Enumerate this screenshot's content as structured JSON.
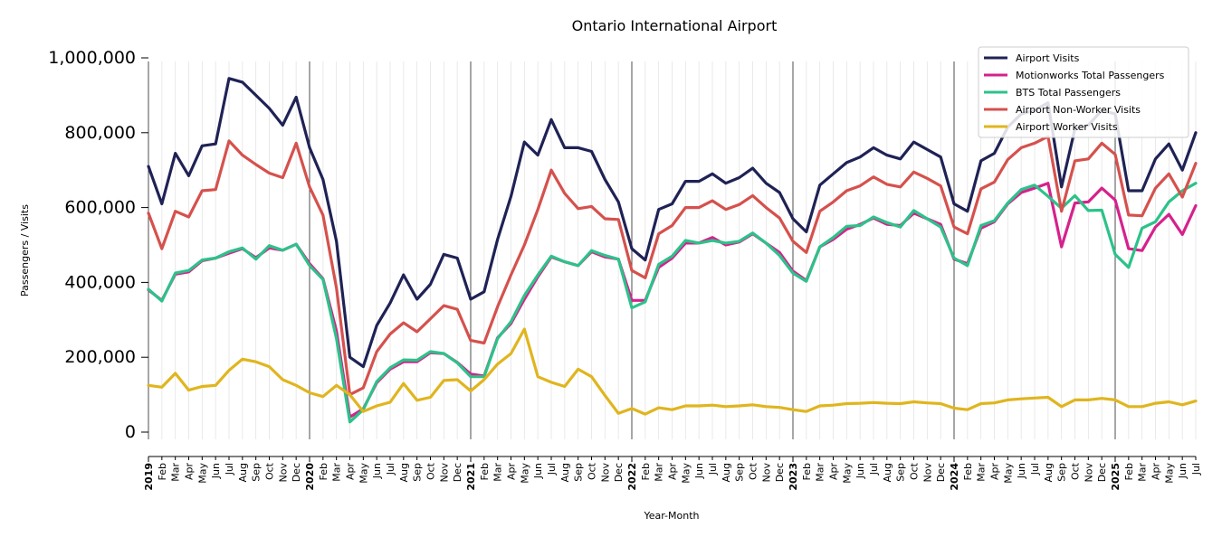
{
  "chart_data": {
    "type": "line",
    "title": "Ontario International Airport",
    "xlabel": "Year-Month",
    "ylabel": "Passengers / Visits",
    "ylim": [
      0,
      1000000
    ],
    "yticks": [
      0,
      200000,
      400000,
      600000,
      800000,
      1000000
    ],
    "ytick_labels": [
      "0",
      "200,000",
      "400,000",
      "600,000",
      "800,000",
      "1,000,000"
    ],
    "grid": "vertical monthly gridlines, dark lines at year boundaries",
    "legend_position": "top-right",
    "x": [
      "2019-01",
      "2019-02",
      "2019-03",
      "2019-04",
      "2019-05",
      "2019-06",
      "2019-07",
      "2019-08",
      "2019-09",
      "2019-10",
      "2019-11",
      "2019-12",
      "2020-01",
      "2020-02",
      "2020-03",
      "2020-04",
      "2020-05",
      "2020-06",
      "2020-07",
      "2020-08",
      "2020-09",
      "2020-10",
      "2020-11",
      "2020-12",
      "2021-01",
      "2021-02",
      "2021-03",
      "2021-04",
      "2021-05",
      "2021-06",
      "2021-07",
      "2021-08",
      "2021-09",
      "2021-10",
      "2021-11",
      "2021-12",
      "2022-01",
      "2022-02",
      "2022-03",
      "2022-04",
      "2022-05",
      "2022-06",
      "2022-07",
      "2022-08",
      "2022-09",
      "2022-10",
      "2022-11",
      "2022-12",
      "2023-01",
      "2023-02",
      "2023-03",
      "2023-04",
      "2023-05",
      "2023-06",
      "2023-07",
      "2023-08",
      "2023-09",
      "2023-10",
      "2023-11",
      "2023-12",
      "2024-01",
      "2024-02",
      "2024-03",
      "2024-04",
      "2024-05",
      "2024-06",
      "2024-07",
      "2024-08",
      "2024-09",
      "2024-10",
      "2024-11",
      "2024-12",
      "2025-01",
      "2025-02",
      "2025-03",
      "2025-04",
      "2025-05",
      "2025-06",
      "2025-07"
    ],
    "x_tick_labels": [
      "2019",
      "Feb",
      "Mar",
      "Apr",
      "May",
      "Jun",
      "Jul",
      "Aug",
      "Sep",
      "Oct",
      "Nov",
      "Dec",
      "2020",
      "Feb",
      "Mar",
      "Apr",
      "May",
      "Jun",
      "Jul",
      "Aug",
      "Sep",
      "Oct",
      "Nov",
      "Dec",
      "2021",
      "Feb",
      "Mar",
      "Apr",
      "May",
      "Jun",
      "Jul",
      "Aug",
      "Sep",
      "Oct",
      "Nov",
      "Dec",
      "2022",
      "Feb",
      "Mar",
      "Apr",
      "May",
      "Jun",
      "Jul",
      "Aug",
      "Sep",
      "Oct",
      "Nov",
      "Dec",
      "2023",
      "Feb",
      "Mar",
      "Apr",
      "May",
      "Jun",
      "Jul",
      "Aug",
      "Sep",
      "Oct",
      "Nov",
      "Dec",
      "2024",
      "Feb",
      "Mar",
      "Apr",
      "May",
      "Jun",
      "Jul",
      "Aug",
      "Sep",
      "Oct",
      "Nov",
      "Dec",
      "2025",
      "Feb",
      "Mar",
      "Apr",
      "May",
      "Jun",
      "Jul"
    ],
    "series": [
      {
        "name": "Airport Visits",
        "color": "#1f2255",
        "values": [
          710000,
          610000,
          745000,
          685000,
          765000,
          770000,
          945000,
          935000,
          900000,
          865000,
          820000,
          895000,
          760000,
          675000,
          510000,
          200000,
          175000,
          285000,
          345000,
          420000,
          355000,
          395000,
          475000,
          465000,
          355000,
          375000,
          515000,
          630000,
          775000,
          740000,
          835000,
          760000,
          760000,
          750000,
          675000,
          615000,
          490000,
          460000,
          595000,
          610000,
          670000,
          670000,
          690000,
          665000,
          680000,
          705000,
          665000,
          640000,
          570000,
          535000,
          660000,
          690000,
          720000,
          735000,
          760000,
          740000,
          730000,
          775000,
          755000,
          735000,
          610000,
          590000,
          725000,
          745000,
          815000,
          850000,
          860000,
          880000,
          655000,
          810000,
          820000,
          860000,
          850000,
          645000,
          645000,
          730000,
          770000,
          700000,
          800000
        ]
      },
      {
        "name": "Motionworks Total Passengers",
        "color": "#d6218c",
        "values": [
          380000,
          352000,
          422000,
          428000,
          458000,
          465000,
          478000,
          490000,
          466000,
          492000,
          486000,
          502000,
          450000,
          410000,
          270000,
          40000,
          62000,
          132000,
          168000,
          188000,
          188000,
          212000,
          210000,
          186000,
          155000,
          150000,
          252000,
          290000,
          355000,
          415000,
          468000,
          455000,
          445000,
          482000,
          468000,
          462000,
          352000,
          352000,
          440000,
          465000,
          505000,
          505000,
          520000,
          500000,
          508000,
          530000,
          505000,
          480000,
          430000,
          405000,
          495000,
          515000,
          542000,
          555000,
          572000,
          555000,
          552000,
          585000,
          570000,
          555000,
          462000,
          450000,
          545000,
          562000,
          610000,
          640000,
          652000,
          665000,
          495000,
          612000,
          615000,
          652000,
          620000,
          490000,
          485000,
          548000,
          582000,
          528000,
          605000
        ]
      },
      {
        "name": "BTS Total Passengers",
        "color": "#2cc28a",
        "values": [
          382000,
          350000,
          425000,
          432000,
          460000,
          465000,
          482000,
          492000,
          462000,
          498000,
          486000,
          502000,
          445000,
          408000,
          250000,
          27000,
          60000,
          135000,
          172000,
          193000,
          192000,
          215000,
          210000,
          185000,
          148000,
          148000,
          250000,
          295000,
          365000,
          420000,
          470000,
          455000,
          445000,
          485000,
          472000,
          462000,
          332000,
          348000,
          448000,
          470000,
          512000,
          505000,
          512000,
          505000,
          510000,
          532000,
          505000,
          472000,
          425000,
          403000,
          495000,
          520000,
          550000,
          552000,
          575000,
          560000,
          548000,
          592000,
          570000,
          548000,
          465000,
          445000,
          552000,
          565000,
          612000,
          648000,
          660000,
          630000,
          598000,
          632000,
          592000,
          593000,
          475000,
          440000,
          545000,
          562000,
          615000,
          645000,
          665000
        ]
      },
      {
        "name": "Airport Non-Worker Visits",
        "color": "#d5514d",
        "values": [
          585000,
          490000,
          590000,
          575000,
          645000,
          648000,
          778000,
          740000,
          715000,
          692000,
          680000,
          772000,
          655000,
          580000,
          385000,
          100000,
          118000,
          215000,
          262000,
          292000,
          268000,
          303000,
          338000,
          328000,
          245000,
          238000,
          335000,
          420000,
          500000,
          595000,
          700000,
          638000,
          597000,
          603000,
          570000,
          568000,
          432000,
          412000,
          530000,
          552000,
          600000,
          600000,
          618000,
          595000,
          608000,
          632000,
          600000,
          572000,
          510000,
          480000,
          590000,
          615000,
          645000,
          658000,
          682000,
          662000,
          655000,
          695000,
          678000,
          658000,
          548000,
          530000,
          650000,
          668000,
          728000,
          760000,
          772000,
          790000,
          590000,
          725000,
          730000,
          772000,
          742000,
          580000,
          578000,
          652000,
          690000,
          628000,
          718000
        ]
      },
      {
        "name": "Airport Worker Visits",
        "color": "#e0b51e",
        "values": [
          125000,
          120000,
          157000,
          112000,
          122000,
          125000,
          165000,
          195000,
          188000,
          175000,
          140000,
          125000,
          105000,
          95000,
          125000,
          100000,
          55000,
          70000,
          80000,
          130000,
          85000,
          93000,
          138000,
          140000,
          110000,
          140000,
          182000,
          210000,
          275000,
          148000,
          133000,
          122000,
          168000,
          148000,
          98000,
          50000,
          63000,
          48000,
          65000,
          60000,
          70000,
          70000,
          72000,
          68000,
          70000,
          73000,
          68000,
          66000,
          60000,
          55000,
          70000,
          72000,
          76000,
          77000,
          79000,
          77000,
          76000,
          81000,
          78000,
          76000,
          64000,
          60000,
          76000,
          78000,
          86000,
          89000,
          91000,
          93000,
          68000,
          86000,
          86000,
          90000,
          86000,
          68000,
          68000,
          77000,
          81000,
          73000,
          83000
        ]
      }
    ]
  }
}
